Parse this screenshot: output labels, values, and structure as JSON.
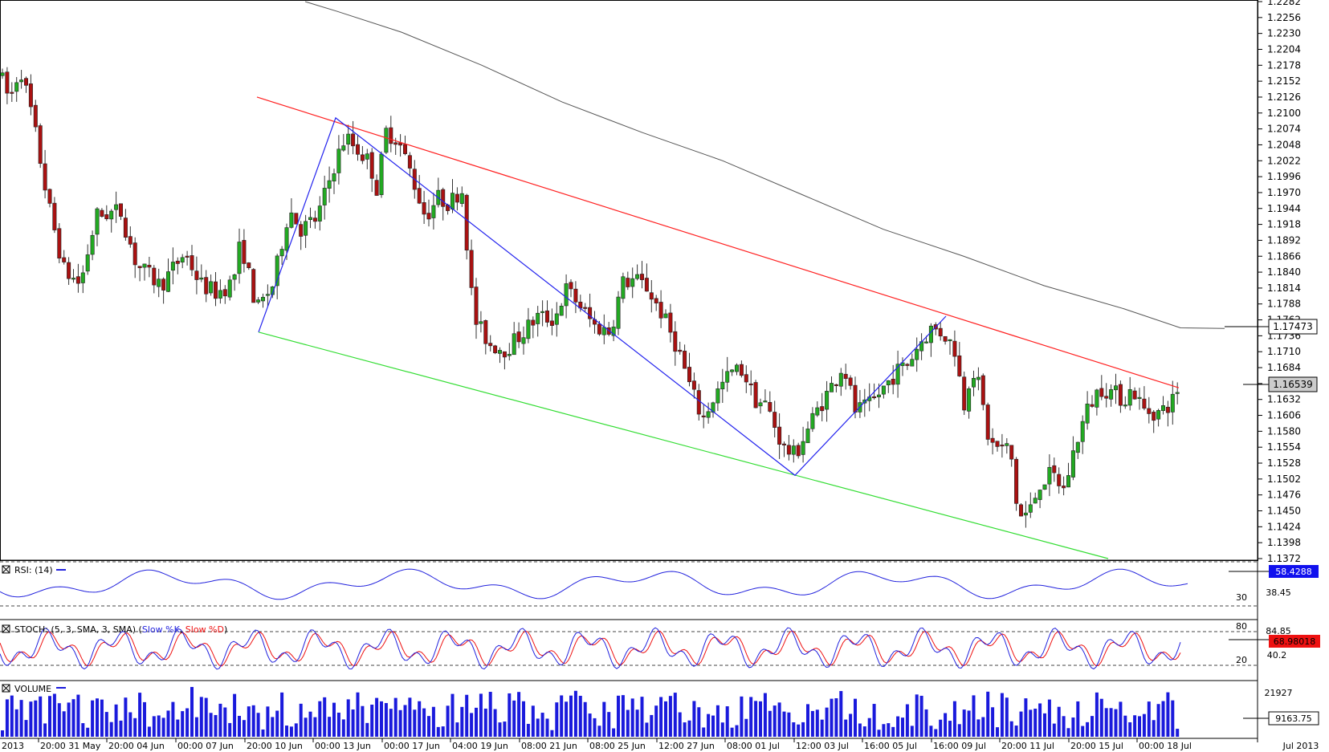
{
  "chart_data": {
    "type": "candlestick",
    "price_axis": {
      "ylim": [
        1.1372,
        1.2282
      ],
      "ticks": [
        "1.2282",
        "1.2256",
        "1.2230",
        "1.2204",
        "1.2178",
        "1.2152",
        "1.2126",
        "1.2100",
        "1.2074",
        "1.2048",
        "1.2022",
        "1.1996",
        "1.1970",
        "1.1944",
        "1.1918",
        "1.1892",
        "1.1866",
        "1.1840",
        "1.1814",
        "1.1788",
        "1.1762",
        "1.1736",
        "1.1710",
        "1.1684",
        "1.1658",
        "1.1632",
        "1.1606",
        "1.1580",
        "1.1554",
        "1.1528",
        "1.1502",
        "1.1476",
        "1.1450",
        "1.1424",
        "1.1398",
        "1.1372"
      ],
      "ma_label": "1.17473",
      "price_label": "1.16539"
    },
    "time_labels": [
      "2013",
      "20:00 31 May",
      "20:00 04 Jun",
      "00:00 07 Jun",
      "20:00 10 Jun",
      "00:00 13 Jun",
      "00:00 17 Jun",
      "04:00 19 Jun",
      "08:00 21 Jun",
      "08:00 25 Jun",
      "12:00 27 Jun",
      "08:00 01 Jul",
      "12:00 03 Jul",
      "16:00 05 Jul",
      "16:00 09 Jul",
      "20:00 11 Jul",
      "20:00 15 Jul",
      "00:00 18 Jul",
      "Jul 2013"
    ],
    "lines": {
      "upper_channel": [
        [
          1.2126,
          0.0
        ],
        [
          1.1651,
          1.0
        ]
      ],
      "lower_channel": [
        [
          1.1742,
          0.0
        ],
        [
          1.1372,
          1.0
        ]
      ],
      "zigzag": [
        [
          0,
          1.1742
        ],
        [
          1,
          1.2092
        ],
        [
          2,
          1.1508
        ],
        [
          3,
          1.1768
        ]
      ]
    },
    "rsi": {
      "label": "RSI: (14)",
      "levels": [
        "70",
        "30"
      ],
      "value": "58.4288",
      "side": "38.45"
    },
    "stoch": {
      "label_prefix": "STOCH: (5, 3, SMA, 3, SMA) (",
      "k_label": "Slow %K",
      "sep": ", ",
      "d_label": "Slow %D",
      "label_suffix": ")",
      "levels": [
        "80",
        "20"
      ],
      "side_top": "84.85",
      "value": "68.98018",
      "side_bottom": "40.2"
    },
    "volume": {
      "label": "VOLUME",
      "side_top": "21927",
      "value": "9163.75"
    },
    "colors": {
      "bull": "#22aa22",
      "bear": "#aa1111",
      "upper": "#ff2020",
      "lower": "#33dd33",
      "zigzag": "#2222ee",
      "ma": "#555555",
      "rsi": "#2222dd",
      "k": "#2222dd",
      "d": "#ee1111",
      "vol": "#1a1adc",
      "price_box": "#cccccc",
      "stoch_box": "#ee1111",
      "rsi_box": "#1111ee"
    }
  }
}
